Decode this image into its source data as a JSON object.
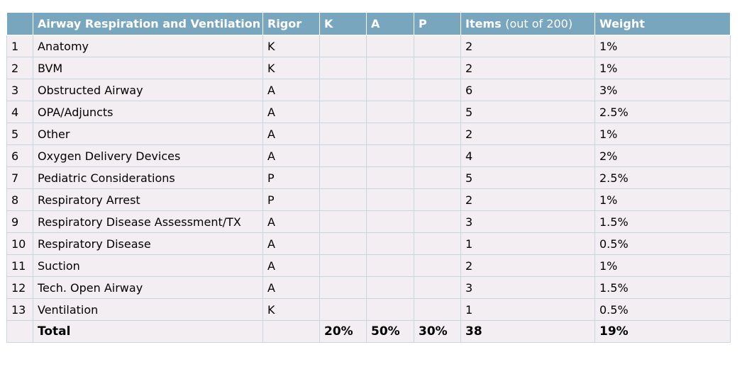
{
  "headers": {
    "num": "",
    "topic": "Airway Respiration and Ventilation",
    "rigor": "Rigor",
    "k": "K",
    "a": "A",
    "p": "P",
    "items_bold": "Items",
    "items_light": "(out of 200)",
    "weight": "Weight"
  },
  "rows": [
    {
      "num": "1",
      "topic": "Anatomy",
      "rigor": "K",
      "items": "2",
      "weight": "1%"
    },
    {
      "num": "2",
      "topic": "BVM",
      "rigor": "K",
      "items": "2",
      "weight": "1%"
    },
    {
      "num": "3",
      "topic": "Obstructed Airway",
      "rigor": "A",
      "items": "6",
      "weight": "3%"
    },
    {
      "num": "4",
      "topic": "OPA/Adjuncts",
      "rigor": "A",
      "items": "5",
      "weight": "2.5%"
    },
    {
      "num": "5",
      "topic": "Other",
      "rigor": "A",
      "items": "2",
      "weight": "1%"
    },
    {
      "num": "6",
      "topic": "Oxygen Delivery Devices",
      "rigor": "A",
      "items": "4",
      "weight": "2%"
    },
    {
      "num": "7",
      "topic": "Pediatric Considerations",
      "rigor": "P",
      "items": "5",
      "weight": "2.5%"
    },
    {
      "num": "8",
      "topic": "Respiratory Arrest",
      "rigor": "P",
      "items": "2",
      "weight": "1%"
    },
    {
      "num": "9",
      "topic": "Respiratory Disease Assessment/TX",
      "rigor": "A",
      "items": "3",
      "weight": "1.5%"
    },
    {
      "num": "10",
      "topic": "Respiratory Disease",
      "rigor": "A",
      "items": "1",
      "weight": "0.5%"
    },
    {
      "num": "11",
      "topic": "Suction",
      "rigor": "A",
      "items": "2",
      "weight": "1%"
    },
    {
      "num": "12",
      "topic": "Tech. Open Airway",
      "rigor": "A",
      "items": "3",
      "weight": "1.5%"
    },
    {
      "num": "13",
      "topic": "Ventilation",
      "rigor": "K",
      "items": "1",
      "weight": "0.5%"
    }
  ],
  "total": {
    "label": "Total",
    "k": "20%",
    "a": "50%",
    "p": "30%",
    "items": "38",
    "weight": "19%"
  }
}
